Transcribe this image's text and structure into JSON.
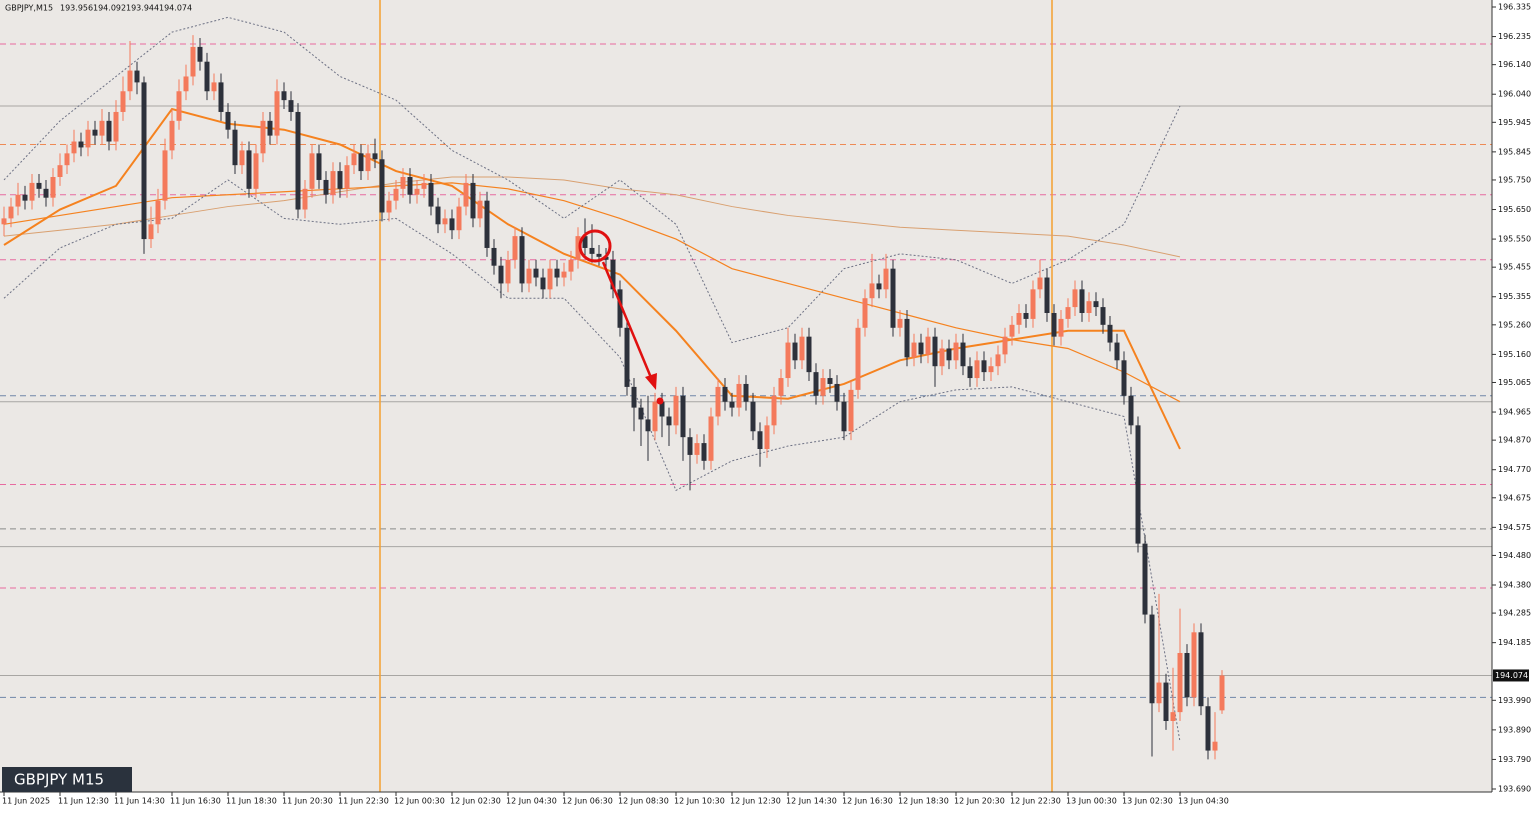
{
  "chart_data": {
    "type": "candlestick",
    "symbol": "GBPJPY,M15",
    "badge": "GBPJPY M15",
    "categories": [
      "11 Jun 2025",
      "11 Jun 12:30",
      "11 Jun 14:30",
      "11 Jun 16:30",
      "11 Jun 18:30",
      "11 Jun 20:30",
      "11 Jun 22:30",
      "12 Jun 00:30",
      "12 Jun 02:30",
      "12 Jun 04:30",
      "12 Jun 06:30",
      "12 Jun 08:30",
      "12 Jun 10:30",
      "12 Jun 12:30",
      "12 Jun 14:30",
      "12 Jun 16:30",
      "12 Jun 18:30",
      "12 Jun 20:30",
      "12 Jun 22:30",
      "13 Jun 00:30",
      "13 Jun 02:30",
      "13 Jun 04:30"
    ],
    "open": [
      195.6,
      195.62,
      195.66,
      195.7,
      195.68,
      195.74,
      195.72,
      195.69,
      195.76,
      195.8,
      195.84,
      195.88,
      195.86,
      195.92,
      195.9,
      195.95,
      195.88,
      195.98,
      196.05,
      196.12,
      196.08,
      195.55,
      195.6,
      195.68,
      195.85,
      195.95,
      196.05,
      196.1,
      196.2,
      196.15,
      196.05,
      196.08,
      195.98,
      195.92,
      195.8,
      195.85,
      195.72,
      195.84,
      195.95,
      195.9,
      196.05,
      196.02,
      195.98,
      195.65,
      195.72,
      195.84,
      195.75,
      195.7,
      195.78,
      195.72,
      195.8,
      195.84,
      195.78,
      195.84,
      195.82,
      195.64,
      195.68,
      195.72,
      195.76,
      195.7,
      195.72,
      195.74,
      195.66,
      195.6,
      195.62,
      195.58,
      195.66,
      195.74,
      195.62,
      195.68,
      195.52,
      195.46,
      195.4,
      195.48,
      195.56,
      195.4,
      195.45,
      195.42,
      195.38,
      195.45,
      195.42,
      195.44,
      195.48,
      195.56,
      195.52,
      195.5,
      195.49,
      195.48,
      195.38,
      195.25,
      195.05,
      194.98,
      194.94,
      194.9,
      195.0,
      194.95,
      194.92,
      195.02,
      194.88,
      194.82,
      194.86,
      194.8,
      194.95,
      195.05,
      195.0,
      194.98,
      195.06,
      195.0,
      194.9,
      194.84,
      194.92,
      195.02,
      195.08,
      195.2,
      195.14,
      195.22,
      195.1,
      195.02,
      195.08,
      195.06,
      195.0,
      194.9,
      195.04,
      195.25,
      195.35,
      195.4,
      195.38,
      195.45,
      195.25,
      195.28,
      195.15,
      195.2,
      195.16,
      195.22,
      195.12,
      195.18,
      195.14,
      195.2,
      195.12,
      195.08,
      195.14,
      195.1,
      195.12,
      195.16,
      195.22,
      195.26,
      195.3,
      195.28,
      195.38,
      195.42,
      195.3,
      195.22,
      195.28,
      195.32,
      195.38,
      195.3,
      195.34,
      195.32,
      195.26,
      195.2,
      195.14,
      195.02,
      194.92,
      194.52,
      194.28,
      193.98,
      194.05,
      193.92,
      193.95,
      194.15,
      194.0,
      194.22,
      193.97,
      193.82,
      193.956
    ],
    "high": [
      195.66,
      195.69,
      195.74,
      195.73,
      195.77,
      195.77,
      195.75,
      195.79,
      195.84,
      195.87,
      195.92,
      195.91,
      195.95,
      195.95,
      195.99,
      195.98,
      196.02,
      196.1,
      196.22,
      196.15,
      196.1,
      195.66,
      195.72,
      195.89,
      195.99,
      196.09,
      196.14,
      196.24,
      196.23,
      196.18,
      196.11,
      196.11,
      196.01,
      195.95,
      195.88,
      195.88,
      195.87,
      195.98,
      195.98,
      196.09,
      196.08,
      196.05,
      196.01,
      195.75,
      195.87,
      195.87,
      195.78,
      195.81,
      195.81,
      195.83,
      195.87,
      195.87,
      195.87,
      195.89,
      195.85,
      195.71,
      195.75,
      195.79,
      195.79,
      195.75,
      195.77,
      195.77,
      195.69,
      195.65,
      195.65,
      195.69,
      195.77,
      195.77,
      195.71,
      195.71,
      195.55,
      195.49,
      195.51,
      195.59,
      195.59,
      195.48,
      195.48,
      195.45,
      195.48,
      195.48,
      195.47,
      195.51,
      195.59,
      195.62,
      195.6,
      195.53,
      195.52,
      195.51,
      195.41,
      195.28,
      195.08,
      195.01,
      195.02,
      195.03,
      195.03,
      194.98,
      195.05,
      195.05,
      194.91,
      194.89,
      194.89,
      194.98,
      195.08,
      195.08,
      195.03,
      195.09,
      195.09,
      195.03,
      194.93,
      194.95,
      195.05,
      195.11,
      195.25,
      195.23,
      195.25,
      195.25,
      195.13,
      195.11,
      195.11,
      195.09,
      195.03,
      195.07,
      195.28,
      195.38,
      195.5,
      195.43,
      195.5,
      195.48,
      195.31,
      195.31,
      195.23,
      195.23,
      195.25,
      195.25,
      195.21,
      195.21,
      195.23,
      195.23,
      195.15,
      195.17,
      195.17,
      195.15,
      195.19,
      195.25,
      195.29,
      195.33,
      195.33,
      195.41,
      195.48,
      195.45,
      195.33,
      195.31,
      195.35,
      195.41,
      195.41,
      195.37,
      195.37,
      195.35,
      195.29,
      195.23,
      195.17,
      195.05,
      194.95,
      194.55,
      194.31,
      194.35,
      194.08,
      194.1,
      194.3,
      194.18,
      194.25,
      194.25,
      194.0,
      193.95,
      194.092
    ],
    "low": [
      195.56,
      195.59,
      195.63,
      195.65,
      195.65,
      195.69,
      195.66,
      195.66,
      195.73,
      195.77,
      195.81,
      195.83,
      195.83,
      195.87,
      195.87,
      195.85,
      195.85,
      195.95,
      196.02,
      196.04,
      195.5,
      195.52,
      195.57,
      195.65,
      195.82,
      195.92,
      196.02,
      196.07,
      196.12,
      196.02,
      196.02,
      195.95,
      195.89,
      195.77,
      195.77,
      195.69,
      195.69,
      195.81,
      195.87,
      195.87,
      195.99,
      195.95,
      195.62,
      195.62,
      195.69,
      195.72,
      195.67,
      195.67,
      195.69,
      195.69,
      195.77,
      195.75,
      195.75,
      195.79,
      195.61,
      195.61,
      195.65,
      195.69,
      195.67,
      195.67,
      195.69,
      195.63,
      195.57,
      195.57,
      195.55,
      195.55,
      195.63,
      195.59,
      195.59,
      195.49,
      195.43,
      195.35,
      195.37,
      195.45,
      195.37,
      195.37,
      195.39,
      195.35,
      195.35,
      195.39,
      195.39,
      195.41,
      195.45,
      195.49,
      195.47,
      195.46,
      195.45,
      195.35,
      195.22,
      195.02,
      194.9,
      194.85,
      194.8,
      194.87,
      194.88,
      194.85,
      194.89,
      194.8,
      194.7,
      194.79,
      194.77,
      194.77,
      194.92,
      194.97,
      194.95,
      194.95,
      194.97,
      194.87,
      194.78,
      194.81,
      194.89,
      194.99,
      195.05,
      195.11,
      195.11,
      195.07,
      194.99,
      194.99,
      195.03,
      194.97,
      194.87,
      194.87,
      195.01,
      195.22,
      195.32,
      195.35,
      195.35,
      195.22,
      195.22,
      195.12,
      195.12,
      195.13,
      195.13,
      195.05,
      195.09,
      195.11,
      195.11,
      195.09,
      195.05,
      195.05,
      195.07,
      195.07,
      195.09,
      195.13,
      195.19,
      195.23,
      195.25,
      195.25,
      195.35,
      195.27,
      195.19,
      195.19,
      195.25,
      195.29,
      195.27,
      195.27,
      195.29,
      195.23,
      195.17,
      195.11,
      194.99,
      194.89,
      194.49,
      194.25,
      193.8,
      193.95,
      193.89,
      193.82,
      193.92,
      193.97,
      193.97,
      193.94,
      193.79,
      193.79,
      193.944
    ],
    "close": [
      195.62,
      195.66,
      195.7,
      195.68,
      195.74,
      195.72,
      195.69,
      195.76,
      195.8,
      195.84,
      195.88,
      195.86,
      195.92,
      195.9,
      195.95,
      195.88,
      195.98,
      196.05,
      196.12,
      196.08,
      195.55,
      195.6,
      195.68,
      195.85,
      195.95,
      196.05,
      196.1,
      196.2,
      196.15,
      196.05,
      196.08,
      195.98,
      195.92,
      195.8,
      195.85,
      195.72,
      195.84,
      195.95,
      195.9,
      196.05,
      196.02,
      195.98,
      195.65,
      195.72,
      195.84,
      195.75,
      195.7,
      195.78,
      195.72,
      195.8,
      195.84,
      195.78,
      195.84,
      195.82,
      195.64,
      195.68,
      195.72,
      195.76,
      195.7,
      195.72,
      195.74,
      195.66,
      195.6,
      195.62,
      195.58,
      195.66,
      195.74,
      195.62,
      195.68,
      195.52,
      195.46,
      195.4,
      195.48,
      195.56,
      195.4,
      195.45,
      195.42,
      195.38,
      195.45,
      195.42,
      195.44,
      195.48,
      195.56,
      195.52,
      195.5,
      195.49,
      195.48,
      195.38,
      195.25,
      195.05,
      194.98,
      194.94,
      194.9,
      195.0,
      194.95,
      194.92,
      195.02,
      194.88,
      194.82,
      194.86,
      194.8,
      194.95,
      195.05,
      195.0,
      194.98,
      195.06,
      195.0,
      194.9,
      194.84,
      194.92,
      195.02,
      195.08,
      195.2,
      195.14,
      195.22,
      195.1,
      195.02,
      195.08,
      195.06,
      195.0,
      194.9,
      195.04,
      195.25,
      195.35,
      195.4,
      195.38,
      195.45,
      195.25,
      195.28,
      195.15,
      195.2,
      195.16,
      195.22,
      195.12,
      195.18,
      195.14,
      195.2,
      195.12,
      195.08,
      195.14,
      195.1,
      195.12,
      195.16,
      195.22,
      195.26,
      195.3,
      195.28,
      195.38,
      195.42,
      195.3,
      195.22,
      195.28,
      195.32,
      195.38,
      195.3,
      195.34,
      195.32,
      195.26,
      195.2,
      195.14,
      195.02,
      194.92,
      194.52,
      194.28,
      193.98,
      194.05,
      193.92,
      193.95,
      194.15,
      194.0,
      194.22,
      193.97,
      193.82,
      193.85,
      194.074
    ],
    "up_color": "#f47a5c",
    "down_color": "#2d313b",
    "series": [
      {
        "color": "#d9a070",
        "width": 1,
        "dash": false,
        "values": [
          195.56,
          195.58,
          195.6,
          195.63,
          195.66,
          195.68,
          195.71,
          195.74,
          195.76,
          195.76,
          195.75,
          195.72,
          195.7,
          195.66,
          195.63,
          195.61,
          195.59,
          195.58,
          195.57,
          195.56,
          195.53,
          195.49
        ]
      },
      {
        "color": "#f5821f",
        "width": 1.2,
        "dash": false,
        "values": [
          195.6,
          195.63,
          195.66,
          195.69,
          195.7,
          195.71,
          195.72,
          195.73,
          195.74,
          195.72,
          195.68,
          195.62,
          195.55,
          195.45,
          195.4,
          195.35,
          195.3,
          195.25,
          195.21,
          195.18,
          195.1,
          195.0
        ]
      },
      {
        "color": "#f5821f",
        "width": 2,
        "dash": false,
        "values": [
          195.53,
          195.65,
          195.73,
          195.99,
          195.94,
          195.92,
          195.87,
          195.78,
          195.73,
          195.6,
          195.5,
          195.43,
          195.24,
          195.02,
          195.01,
          195.06,
          195.14,
          195.18,
          195.21,
          195.24,
          195.24,
          194.84
        ]
      },
      {
        "color": "#6d7184",
        "width": 1,
        "dash": true,
        "values": [
          195.75,
          195.95,
          196.1,
          196.25,
          196.3,
          196.25,
          196.1,
          196.02,
          195.85,
          195.75,
          195.62,
          195.75,
          195.6,
          195.2,
          195.25,
          195.45,
          195.5,
          195.48,
          195.4,
          195.48,
          195.6,
          196.0
        ]
      },
      {
        "color": "#6d7184",
        "width": 1,
        "dash": true,
        "values": [
          195.35,
          195.52,
          195.6,
          195.62,
          195.75,
          195.62,
          195.6,
          195.62,
          195.5,
          195.35,
          195.35,
          195.15,
          194.7,
          194.8,
          194.85,
          194.88,
          195.0,
          195.04,
          195.05,
          195.0,
          194.95,
          193.85
        ]
      }
    ],
    "levels": [
      {
        "value": 196.21,
        "color": "#e86aa0"
      },
      {
        "value": 195.87,
        "color": "#ee8a55"
      },
      {
        "value": 195.7,
        "color": "#e86aa0"
      },
      {
        "value": 195.48,
        "color": "#e86aa0"
      },
      {
        "value": 195.02,
        "color": "#6f86a8"
      },
      {
        "value": 194.72,
        "color": "#e86aa0"
      },
      {
        "value": 194.57,
        "color": "#8a8a8a"
      },
      {
        "value": 194.37,
        "color": "#e86aa0"
      },
      {
        "value": 194.0,
        "color": "#6f86a8"
      }
    ],
    "lines": [
      196.0,
      195.0,
      194.51,
      194.074
    ],
    "ylim": [
      193.69,
      196.335
    ],
    "yticks": [
      196.335,
      196.235,
      {
        "value": 196.14,
        "label": "196.140"
      },
      {
        "value": 196.04,
        "label": "196.040"
      },
      195.945,
      195.845,
      {
        "value": 195.75,
        "label": "195.750"
      },
      {
        "value": 195.65,
        "label": "195.650"
      },
      {
        "value": 195.55,
        "label": "195.550"
      },
      195.455,
      195.355,
      {
        "value": 195.26,
        "label": "195.260"
      },
      {
        "value": 195.16,
        "label": "195.160"
      },
      195.065,
      194.965,
      {
        "value": 194.87,
        "label": "194.870"
      },
      {
        "value": 194.77,
        "label": "194.770"
      },
      194.675,
      194.575,
      {
        "value": 194.48,
        "label": "194.480"
      },
      {
        "value": 194.38,
        "label": "194.380"
      },
      194.285,
      194.185,
      {
        "value": 193.99,
        "label": "193.990"
      },
      {
        "value": 193.89,
        "label": "193.890"
      },
      {
        "value": 193.79,
        "label": "193.790"
      },
      {
        "value": 193.69,
        "label": "193.690"
      }
    ]
  }
}
